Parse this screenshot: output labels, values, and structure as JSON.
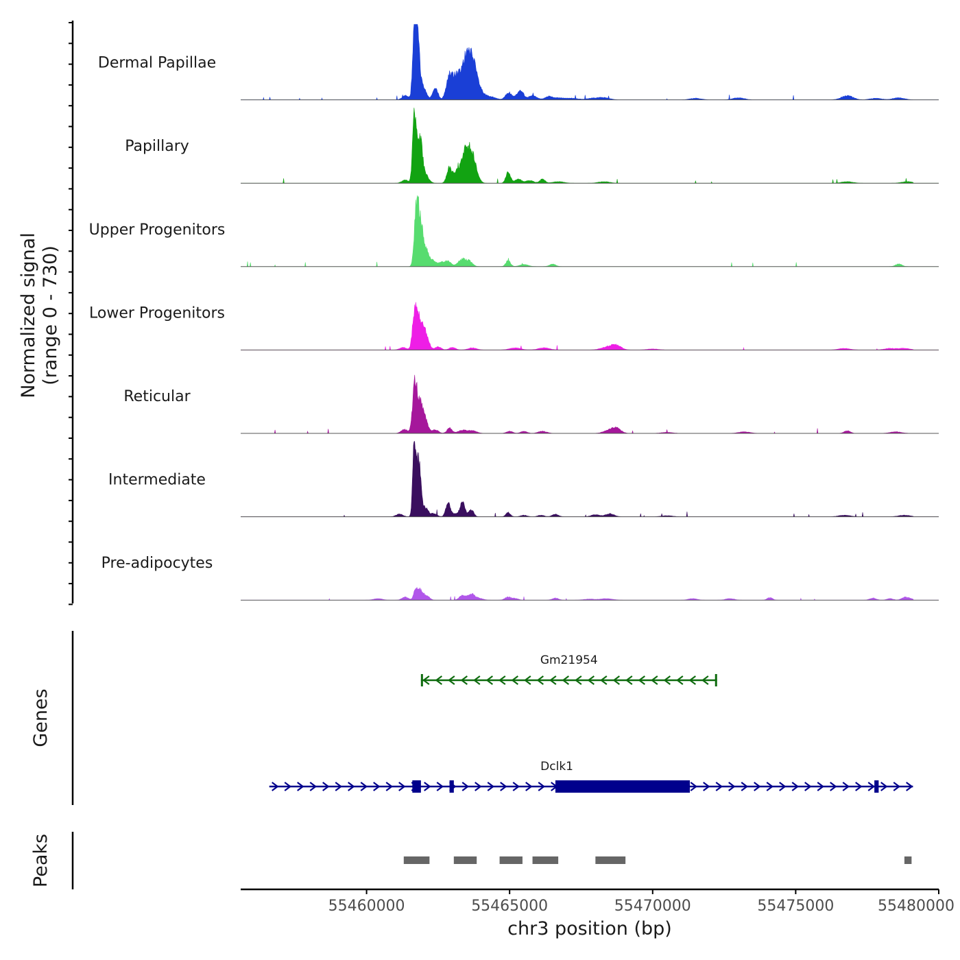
{
  "chart_data": {
    "type": "area",
    "title": "",
    "xlabel": "chr3 position (bp)",
    "xlim": [
      55455600,
      55480000
    ],
    "x_ticks": [
      55460000,
      55465000,
      55470000,
      55475000,
      55480000
    ],
    "x_tick_labels": [
      "55460000",
      "55465000",
      "55470000",
      "55475000",
      "55480000"
    ],
    "signal_ylabel_line1": "Normalized signal",
    "signal_ylabel_line2": "(range 0 - 730)",
    "signal_range": [
      0,
      730
    ],
    "genes_label": "Genes",
    "peaks_label": "Peaks",
    "series": [
      {
        "name": "Dermal Papillae",
        "color": "#1a3fd6",
        "noise": 0.012,
        "peaks": [
          [
            55461670,
            720,
            55
          ],
          [
            55461780,
            560,
            70
          ],
          [
            55461950,
            140,
            120
          ],
          [
            55461370,
            40,
            120
          ],
          [
            55462400,
            110,
            90
          ],
          [
            55462900,
            230,
            110
          ],
          [
            55463150,
            200,
            120
          ],
          [
            55463500,
            420,
            160
          ],
          [
            55463750,
            220,
            140
          ],
          [
            55463950,
            60,
            150
          ],
          [
            55464300,
            30,
            200
          ],
          [
            55464950,
            70,
            100
          ],
          [
            55465300,
            40,
            150
          ],
          [
            55465400,
            55,
            90
          ],
          [
            55465800,
            40,
            150
          ],
          [
            55466350,
            30,
            120
          ],
          [
            55466700,
            20,
            200
          ],
          [
            55467200,
            15,
            200
          ],
          [
            55467900,
            15,
            200
          ],
          [
            55468300,
            20,
            200
          ],
          [
            55471500,
            15,
            200
          ],
          [
            55473000,
            20,
            200
          ],
          [
            55476800,
            40,
            200
          ],
          [
            55477800,
            15,
            200
          ],
          [
            55478600,
            20,
            200
          ]
        ]
      },
      {
        "name": "Papillary",
        "color": "#12a312",
        "noise": 0.01,
        "peaks": [
          [
            55461670,
            640,
            60
          ],
          [
            55461850,
            450,
            90
          ],
          [
            55462050,
            80,
            120
          ],
          [
            55461350,
            30,
            120
          ],
          [
            55462900,
            150,
            90
          ],
          [
            55463150,
            80,
            100
          ],
          [
            55463500,
            340,
            170
          ],
          [
            55463750,
            150,
            130
          ],
          [
            55464950,
            110,
            80
          ],
          [
            55465300,
            40,
            110
          ],
          [
            55465700,
            25,
            150
          ],
          [
            55466150,
            40,
            90
          ],
          [
            55466700,
            15,
            200
          ],
          [
            55468300,
            15,
            200
          ],
          [
            55476800,
            15,
            200
          ],
          [
            55478900,
            15,
            200
          ]
        ]
      },
      {
        "name": "Upper Progenitors",
        "color": "#57dc6f",
        "noise": 0.008,
        "peaks": [
          [
            55461750,
            560,
            75
          ],
          [
            55461900,
            370,
            90
          ],
          [
            55462100,
            120,
            100
          ],
          [
            55462300,
            50,
            110
          ],
          [
            55462600,
            40,
            120
          ],
          [
            55462850,
            50,
            100
          ],
          [
            55463350,
            70,
            150
          ],
          [
            55463600,
            40,
            110
          ],
          [
            55464950,
            60,
            80
          ],
          [
            55465500,
            20,
            150
          ],
          [
            55466500,
            25,
            110
          ],
          [
            55478600,
            25,
            110
          ]
        ]
      },
      {
        "name": "Lower Progenitors",
        "color": "#ee1ee6",
        "noise": 0.008,
        "peaks": [
          [
            55461680,
            330,
            75
          ],
          [
            55461850,
            290,
            110
          ],
          [
            55462080,
            140,
            100
          ],
          [
            55461280,
            25,
            120
          ],
          [
            55462500,
            30,
            110
          ],
          [
            55463000,
            25,
            110
          ],
          [
            55463700,
            20,
            150
          ],
          [
            55465200,
            20,
            200
          ],
          [
            55466200,
            20,
            200
          ],
          [
            55468500,
            35,
            250
          ],
          [
            55468750,
            30,
            150
          ],
          [
            55470000,
            10,
            200
          ],
          [
            55476700,
            15,
            200
          ],
          [
            55478300,
            15,
            200
          ],
          [
            55478800,
            15,
            200
          ]
        ]
      },
      {
        "name": "Reticular",
        "color": "#a5179b",
        "noise": 0.008,
        "peaks": [
          [
            55461680,
            420,
            75
          ],
          [
            55461850,
            280,
            110
          ],
          [
            55462050,
            110,
            100
          ],
          [
            55461320,
            40,
            110
          ],
          [
            55462400,
            35,
            110
          ],
          [
            55462900,
            50,
            90
          ],
          [
            55463350,
            30,
            150
          ],
          [
            55463700,
            25,
            150
          ],
          [
            55465000,
            20,
            110
          ],
          [
            55465500,
            20,
            110
          ],
          [
            55466150,
            20,
            150
          ],
          [
            55468500,
            30,
            200
          ],
          [
            55468750,
            40,
            150
          ],
          [
            55470500,
            10,
            200
          ],
          [
            55473200,
            15,
            200
          ],
          [
            55476800,
            25,
            110
          ],
          [
            55478500,
            15,
            200
          ]
        ]
      },
      {
        "name": "Intermediate",
        "color": "#3a0f5e",
        "noise": 0.008,
        "peaks": [
          [
            55461670,
            690,
            55
          ],
          [
            55461820,
            530,
            75
          ],
          [
            55462050,
            90,
            100
          ],
          [
            55461150,
            25,
            120
          ],
          [
            55462350,
            30,
            110
          ],
          [
            55462850,
            130,
            80
          ],
          [
            55463100,
            30,
            110
          ],
          [
            55463350,
            150,
            80
          ],
          [
            55463650,
            70,
            90
          ],
          [
            55464950,
            40,
            80
          ],
          [
            55465500,
            15,
            110
          ],
          [
            55466100,
            15,
            110
          ],
          [
            55466600,
            25,
            110
          ],
          [
            55468000,
            20,
            150
          ],
          [
            55468500,
            30,
            150
          ],
          [
            55470500,
            10,
            200
          ],
          [
            55476700,
            15,
            200
          ],
          [
            55478800,
            15,
            200
          ]
        ]
      },
      {
        "name": "Pre-adipocytes",
        "color": "#b157ea",
        "noise": 0.005,
        "peaks": [
          [
            55461720,
            100,
            70
          ],
          [
            55461880,
            90,
            90
          ],
          [
            55462100,
            40,
            100
          ],
          [
            55461350,
            30,
            110
          ],
          [
            55460400,
            15,
            150
          ],
          [
            55463350,
            45,
            110
          ],
          [
            55463650,
            55,
            110
          ],
          [
            55463900,
            20,
            150
          ],
          [
            55464950,
            30,
            110
          ],
          [
            55465200,
            15,
            110
          ],
          [
            55466600,
            20,
            110
          ],
          [
            55467800,
            10,
            200
          ],
          [
            55468400,
            15,
            200
          ],
          [
            55471400,
            15,
            150
          ],
          [
            55472700,
            15,
            150
          ],
          [
            55474100,
            25,
            90
          ],
          [
            55477700,
            20,
            110
          ],
          [
            55478800,
            25,
            110
          ],
          [
            55478300,
            15,
            110
          ],
          [
            55479000,
            15,
            110
          ]
        ]
      }
    ],
    "genes": [
      {
        "name": "Gm21954",
        "strand": "-",
        "start": 55461900,
        "end": 55472250,
        "color": "#0e6b0e",
        "exons": [
          [
            55461900,
            55461960
          ],
          [
            55472180,
            55472250
          ]
        ]
      },
      {
        "name": "Dclk1",
        "strand": "+",
        "start": 55456600,
        "end": 55479100,
        "color": "#00008c",
        "exons": [
          [
            55461600,
            55461900
          ],
          [
            55462900,
            55463050
          ],
          [
            55466600,
            55471300
          ],
          [
            55477750,
            55477900
          ]
        ]
      }
    ],
    "peaks": [
      [
        55461300,
        55462200
      ],
      [
        55463050,
        55463850
      ],
      [
        55464650,
        55465450
      ],
      [
        55465800,
        55466700
      ],
      [
        55468000,
        55469050
      ],
      [
        55478800,
        55479050
      ]
    ]
  }
}
